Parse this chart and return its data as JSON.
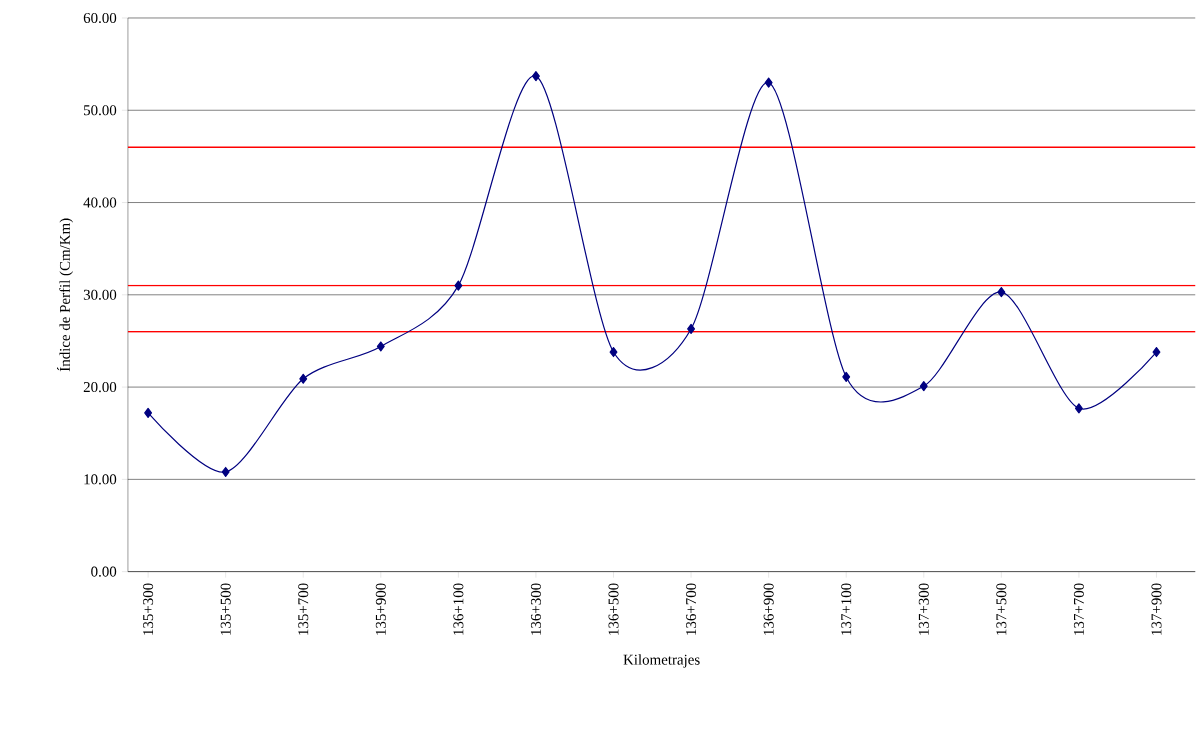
{
  "chart_data": {
    "type": "line",
    "xlabel": "Kilometrajes",
    "ylabel": "Índice de Perfil (Cm/Km)",
    "categories": [
      "135+300",
      "135+500",
      "135+700",
      "135+900",
      "136+100",
      "136+300",
      "136+500",
      "136+700",
      "136+900",
      "137+100",
      "137+300",
      "137+500",
      "137+700",
      "137+900"
    ],
    "series": [
      {
        "color": "#000080",
        "values": [
          17.2,
          10.8,
          20.9,
          24.4,
          31.0,
          53.7,
          23.8,
          26.3,
          53.0,
          21.1,
          20.1,
          30.3,
          17.7,
          23.8
        ]
      }
    ],
    "marker": "diamond",
    "grid": "y",
    "ylim": [
      0,
      60
    ],
    "yticks": [
      {
        "value": 0,
        "label": "0.00"
      },
      {
        "value": 10,
        "label": "10.00"
      },
      {
        "value": 20,
        "label": "20.00"
      },
      {
        "value": 30,
        "label": "30.00"
      },
      {
        "value": 40,
        "label": "40.00"
      },
      {
        "value": 50,
        "label": "50.00"
      },
      {
        "value": 60,
        "label": "60.00"
      }
    ],
    "ref_lines": [
      {
        "axis": "y",
        "value": 46,
        "color": "#ff0000"
      },
      {
        "axis": "y",
        "value": 31,
        "color": "#ff0000"
      },
      {
        "axis": "y",
        "value": 26,
        "color": "#ff0000"
      }
    ]
  }
}
